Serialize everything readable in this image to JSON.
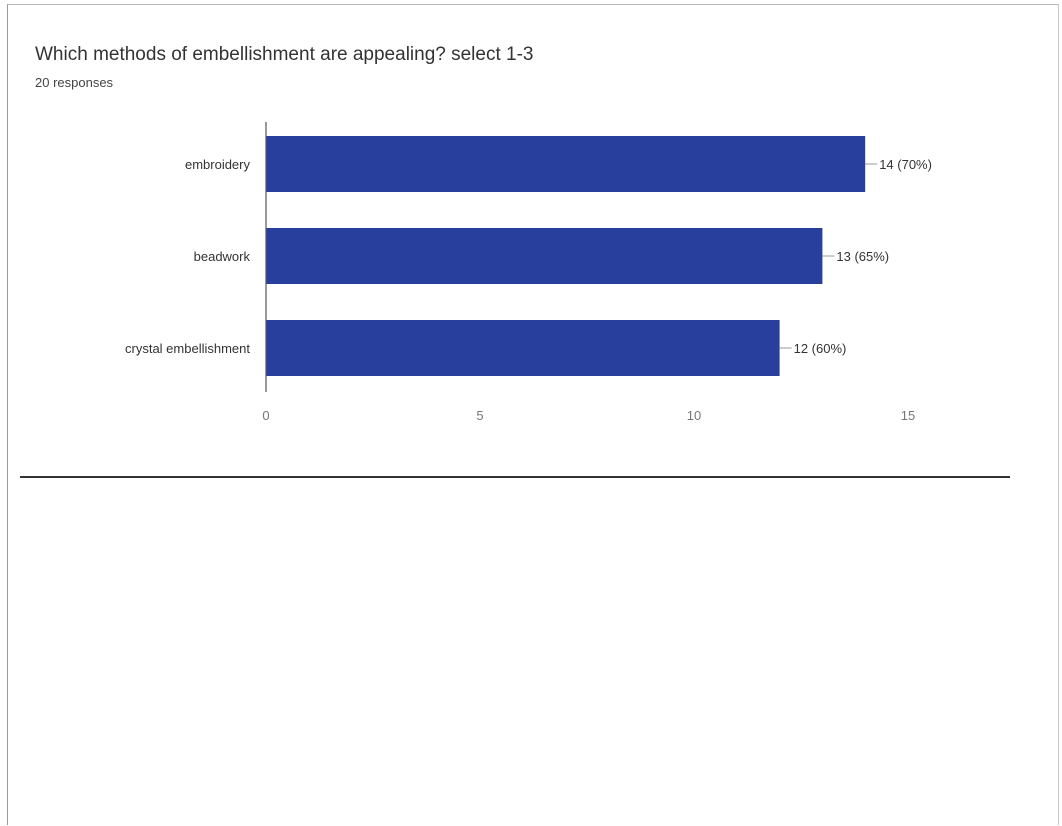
{
  "header": {
    "title": "Which methods of embellishment are appealing? select 1-3",
    "subtitle": "20 responses"
  },
  "chart_data": {
    "type": "bar",
    "orientation": "horizontal",
    "categories": [
      "embroidery",
      "beadwork",
      "crystal embellishment"
    ],
    "values": [
      14,
      13,
      12
    ],
    "data_labels": [
      "14 (70%)",
      "13 (65%)",
      "12 (60%)"
    ],
    "xticks": [
      "0",
      "5",
      "10",
      "15"
    ],
    "xlim": [
      0,
      15
    ],
    "grid": false,
    "bar_color": "#283f9e"
  }
}
